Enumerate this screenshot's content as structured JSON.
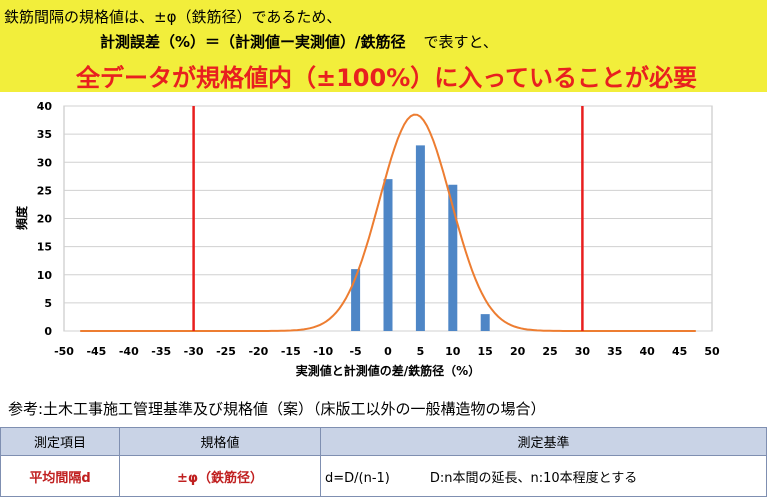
{
  "banner": {
    "line1": "鉄筋間隔の規格値は、±φ（鉄筋径）であるため、",
    "line2_formula": "計測誤差（%）＝（計測値ー実測値）/鉄筋径",
    "line2_tail": "で表すと、",
    "line3": "全データが規格値内（±100%）に入っていることが必要"
  },
  "colors": {
    "banner_bg": "#f2ee3b",
    "headline_red": "#e8201f",
    "bar": "#4e86c6",
    "curve": "#ed7d31",
    "limit_line": "#e81e1e",
    "table_header": "#c9d3e6"
  },
  "chart_data": {
    "type": "bar",
    "title": "",
    "xlabel": "実測値と計測値の差/鉄筋径（%）",
    "ylabel": "頻度",
    "xlim": [
      -50,
      50
    ],
    "ylim": [
      0,
      40
    ],
    "x_ticks": [
      -50,
      -45,
      -40,
      -35,
      -30,
      -25,
      -20,
      -15,
      -10,
      -5,
      0,
      5,
      10,
      15,
      20,
      25,
      30,
      35,
      40,
      45,
      50
    ],
    "y_ticks": [
      0,
      5,
      10,
      15,
      20,
      25,
      30,
      35,
      40
    ],
    "grid": "horizontal",
    "bars": {
      "x": [
        -5,
        0,
        5,
        10,
        15
      ],
      "values": [
        11,
        27,
        33,
        26,
        3
      ]
    },
    "fit_curve": {
      "type": "normal",
      "mean": 4.2,
      "peak": 38.5,
      "sigma": 5.5
    },
    "limit_lines": [
      -30,
      30
    ]
  },
  "reference": "参考:土木工事施工管理基準及び規格値（案）（床版工以外の一般構造物の場合）",
  "table": {
    "headers": [
      "測定項目",
      "規格値",
      "測定基準"
    ],
    "row": {
      "item": "平均間隔d",
      "spec": "±φ（鉄筋径）",
      "formula": "d=D/(n-1)",
      "note": "D:n本間の延長、n:10本程度とする"
    }
  }
}
